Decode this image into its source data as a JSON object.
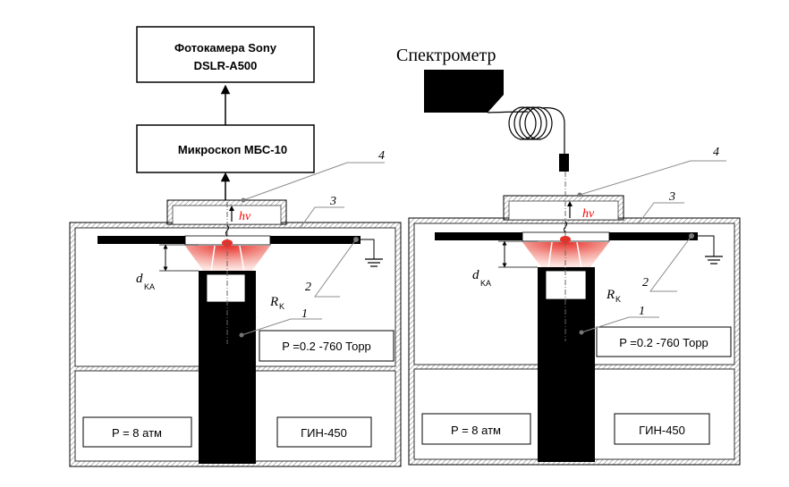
{
  "left": {
    "camera_line1": "Фотокамера Sony",
    "camera_line2": "DSLR-A500",
    "microscope": "Микроскоп МБС-10",
    "hv": "hν",
    "d_main": "d",
    "d_sub": "KA",
    "r_main": "R",
    "r_sub": "K",
    "pressure_low": "P =0.2 -760 Торр",
    "pressure_high": "P = 8 атм",
    "generator": "ГИН-450",
    "callout_1": "1",
    "callout_2": "2",
    "callout_3": "3",
    "callout_4": "4"
  },
  "right": {
    "spectrometer": "Спектрометр",
    "hv": "hν",
    "d_main": "d",
    "d_sub": "KA",
    "r_main": "R",
    "r_sub": "K",
    "pressure_low": "P =0.2 -760 Торр",
    "pressure_high": "P = 8 атм",
    "generator": "ГИН-450",
    "callout_1": "1",
    "callout_2": "2",
    "callout_3": "3",
    "callout_4": "4"
  },
  "colors": {
    "hv_label": "#ff0000",
    "discharge_red": "#e8302a",
    "discharge_pink": "#f4a7a0",
    "leader_gray": "#8c8c8c",
    "fill_black": "#000000"
  },
  "icons": [
    "ground-symbol-icon",
    "fiber-coil-icon",
    "arrow-up-icon"
  ]
}
